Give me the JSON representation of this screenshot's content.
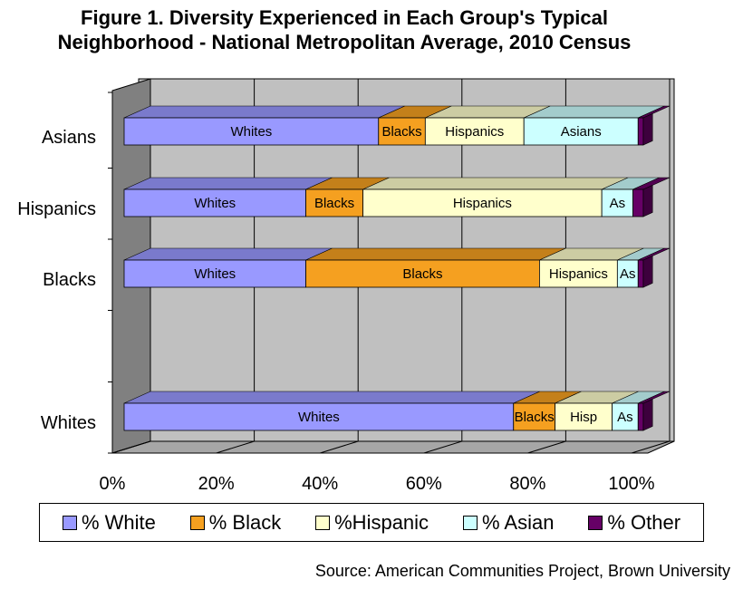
{
  "title_lines": [
    "Figure 1.  Diversity Experienced in Each Group's Typical",
    "Neighborhood - National Metropolitan Average, 2010 Census"
  ],
  "source": "Source: American Communities Project, Brown University",
  "colors": {
    "White": "#9999ff",
    "Black": "#f5a020",
    "Hispanic": "#ffffcc",
    "Asian": "#ccffff",
    "Other": "#660066",
    "wall": "#c0c0c0",
    "side_wall": "#808080",
    "floor": "#a6a6a6"
  },
  "legend": [
    {
      "key": "White",
      "label": "% White"
    },
    {
      "key": "Black",
      "label": "% Black"
    },
    {
      "key": "Hispanic",
      "label": "%Hispanic"
    },
    {
      "key": "Asian",
      "label": "% Asian"
    },
    {
      "key": "Other",
      "label": "% Other"
    }
  ],
  "chart_data": {
    "type": "bar",
    "orientation": "horizontal",
    "stacked": "percent",
    "three_d": true,
    "categories": [
      "Asians",
      "Hispanics",
      "Blacks",
      "",
      "Whites"
    ],
    "series": [
      {
        "name": "% White",
        "key": "White",
        "values": [
          49,
          35,
          35,
          null,
          75
        ],
        "labels": [
          "Whites",
          "Whites",
          "Whites",
          null,
          "Whites"
        ]
      },
      {
        "name": "% Black",
        "key": "Black",
        "values": [
          9,
          11,
          45,
          null,
          8
        ],
        "labels": [
          "Blacks",
          "Blacks",
          "Blacks",
          null,
          "Blacks"
        ]
      },
      {
        "name": "%Hispanic",
        "key": "Hispanic",
        "values": [
          19,
          46,
          15,
          null,
          11
        ],
        "labels": [
          "Hispanics",
          "Hispanics",
          "Hispanics",
          null,
          "Hisp"
        ]
      },
      {
        "name": "% Asian",
        "key": "Asian",
        "values": [
          22,
          6,
          4,
          null,
          5
        ],
        "labels": [
          "Asians",
          "As",
          "As",
          null,
          "As"
        ]
      },
      {
        "name": "% Other",
        "key": "Other",
        "values": [
          1,
          2,
          1,
          null,
          1
        ],
        "labels": [
          "",
          "",
          "",
          null,
          ""
        ]
      }
    ],
    "xticks": [
      "0%",
      "20%",
      "40%",
      "60%",
      "80%",
      "100%"
    ],
    "xlim": [
      0,
      100
    ],
    "grid": true,
    "legend_position": "bottom"
  }
}
